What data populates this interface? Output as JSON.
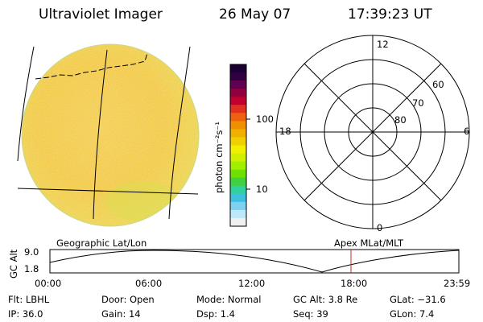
{
  "header": {
    "instrument": "Ultraviolet Imager",
    "date": "26 May 07",
    "time": "17:39:23 UT"
  },
  "colorbar": {
    "unit": "photon cm⁻²s⁻¹",
    "tick_100": "100",
    "tick_10": "10",
    "colors": [
      "#1a0033",
      "#300040",
      "#600050",
      "#900040",
      "#c00030",
      "#e03020",
      "#f06010",
      "#f09000",
      "#f0b000",
      "#f0d000",
      "#f0f000",
      "#d0f000",
      "#a0f000",
      "#70e000",
      "#40d040",
      "#30d0a0",
      "#40c0e0",
      "#80d0f0",
      "#c0e8f8",
      "#f0f0f0"
    ]
  },
  "polar": {
    "mlt_12": "12",
    "mlt_18": "18",
    "mlt_6": "6",
    "mlt_0": "0",
    "lat_60": "60",
    "lat_70": "70",
    "lat_80": "80"
  },
  "orbit": {
    "left_label": "Geographic Lat/Lon",
    "right_label": "Apex MLat/MLT",
    "yaxis_label": "GC Alt",
    "y_top": "9.0",
    "y_bottom": "1.8",
    "x_ticks": [
      "00:00",
      "06:00",
      "12:00",
      "18:00",
      "23:59"
    ]
  },
  "status": {
    "row1": [
      {
        "label": "Flt:",
        "value": "LBHL"
      },
      {
        "label": "Door:",
        "value": "Open"
      },
      {
        "label": "Mode:",
        "value": "Normal"
      },
      {
        "label": "GC Alt:",
        "value": "3.8 Re"
      },
      {
        "label": "GLat:",
        "value": "−31.6"
      }
    ],
    "row2": [
      {
        "label": "IP:",
        "value": "36.0"
      },
      {
        "label": "Gain:",
        "value": "14"
      },
      {
        "label": "Dsp:",
        "value": "1.4"
      },
      {
        "label": "Seq:",
        "value": "39"
      },
      {
        "label": "GLon:",
        "value": "7.4"
      }
    ]
  }
}
